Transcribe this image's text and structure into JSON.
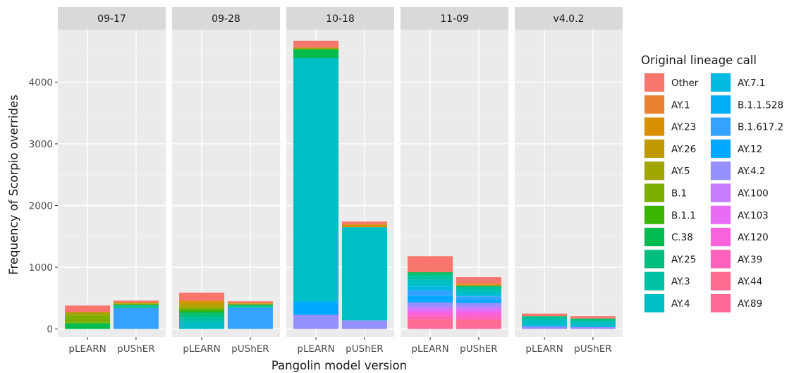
{
  "chart_data": {
    "type": "bar",
    "stacked": true,
    "faceted": true,
    "xlabel": "Pangolin model version",
    "ylabel": "Frequency of Scorpio overrides",
    "ylim": [
      -130,
      4850
    ],
    "yticks": [
      0,
      1000,
      2000,
      3000,
      4000
    ],
    "grid": true,
    "legend_position": "right",
    "legend_title": "Original lineage call",
    "categories": [
      "pLEARN",
      "pUShER"
    ],
    "lineages": [
      {
        "name": "Other",
        "color": "#F8766D"
      },
      {
        "name": "AY.1",
        "color": "#EA8331"
      },
      {
        "name": "AY.23",
        "color": "#D89000"
      },
      {
        "name": "AY.26",
        "color": "#C09B00"
      },
      {
        "name": "AY.5",
        "color": "#A3A500"
      },
      {
        "name": "B.1",
        "color": "#7CAE00"
      },
      {
        "name": "B.1.1",
        "color": "#39B600"
      },
      {
        "name": "C.38",
        "color": "#00BB4E"
      },
      {
        "name": "AY.25",
        "color": "#00BF7D"
      },
      {
        "name": "AY.3",
        "color": "#00C1A3"
      },
      {
        "name": "AY.4",
        "color": "#00BFC4"
      },
      {
        "name": "AY.7.1",
        "color": "#00BAE0"
      },
      {
        "name": "B.1.1.528",
        "color": "#00B0F6"
      },
      {
        "name": "B.1.617.2",
        "color": "#35A2FF"
      },
      {
        "name": "AY.12",
        "color": "#00A9FF"
      },
      {
        "name": "AY.4.2",
        "color": "#9590FF"
      },
      {
        "name": "AY.100",
        "color": "#C77CFF"
      },
      {
        "name": "AY.103",
        "color": "#E76BF3"
      },
      {
        "name": "AY.120",
        "color": "#FA62DB"
      },
      {
        "name": "AY.39",
        "color": "#FF62BC"
      },
      {
        "name": "AY.44",
        "color": "#FF6C91"
      },
      {
        "name": "AY.89",
        "color": "#FF6A98"
      }
    ],
    "panels": [
      {
        "label": "09-17",
        "bars": [
          {
            "category": "pLEARN",
            "segments": [
              {
                "lineage": "C.38",
                "value": 90
              },
              {
                "lineage": "B.1.1",
                "value": 10
              },
              {
                "lineage": "B.1",
                "value": 120
              },
              {
                "lineage": "AY.5",
                "value": 50
              },
              {
                "lineage": "Other",
                "value": 110
              }
            ]
          },
          {
            "category": "pUShER",
            "segments": [
              {
                "lineage": "B.1.617.2",
                "value": 340
              },
              {
                "lineage": "AY.25",
                "value": 25
              },
              {
                "lineage": "AY.3",
                "value": 25
              },
              {
                "lineage": "B.1",
                "value": 20
              },
              {
                "lineage": "AY.26",
                "value": 20
              },
              {
                "lineage": "Other",
                "value": 30
              }
            ]
          }
        ]
      },
      {
        "label": "09-28",
        "bars": [
          {
            "category": "pLEARN",
            "segments": [
              {
                "lineage": "AY.4",
                "value": 120
              },
              {
                "lineage": "AY.3",
                "value": 70
              },
              {
                "lineage": "AY.25",
                "value": 60
              },
              {
                "lineage": "C.38",
                "value": 30
              },
              {
                "lineage": "B.1.1",
                "value": 30
              },
              {
                "lineage": "B.1",
                "value": 30
              },
              {
                "lineage": "AY.5",
                "value": 40
              },
              {
                "lineage": "AY.26",
                "value": 40
              },
              {
                "lineage": "AY.23",
                "value": 40
              },
              {
                "lineage": "Other",
                "value": 130
              }
            ]
          },
          {
            "category": "pUShER",
            "segments": [
              {
                "lineage": "B.1.617.2",
                "value": 340
              },
              {
                "lineage": "AY.3",
                "value": 30
              },
              {
                "lineage": "AY.25",
                "value": 25
              },
              {
                "lineage": "AY.26",
                "value": 20
              },
              {
                "lineage": "AY.1",
                "value": 15
              },
              {
                "lineage": "Other",
                "value": 20
              }
            ]
          }
        ]
      },
      {
        "label": "10-18",
        "bars": [
          {
            "category": "pLEARN",
            "segments": [
              {
                "lineage": "AY.4.2",
                "value": 230
              },
              {
                "lineage": "AY.12",
                "value": 200
              },
              {
                "lineage": "AY.7.1",
                "value": 40
              },
              {
                "lineage": "AY.4",
                "value": 3920
              },
              {
                "lineage": "C.38",
                "value": 140
              },
              {
                "lineage": "AY.5",
                "value": 30
              },
              {
                "lineage": "Other",
                "value": 110
              }
            ]
          },
          {
            "category": "pUShER",
            "segments": [
              {
                "lineage": "AY.4.2",
                "value": 140
              },
              {
                "lineage": "AY.4",
                "value": 1510
              },
              {
                "lineage": "AY.23",
                "value": 40
              },
              {
                "lineage": "AY.1",
                "value": 20
              },
              {
                "lineage": "Other",
                "value": 30
              }
            ]
          }
        ]
      },
      {
        "label": "11-09",
        "bars": [
          {
            "category": "pLEARN",
            "segments": [
              {
                "lineage": "AY.89",
                "value": 80
              },
              {
                "lineage": "AY.44",
                "value": 80
              },
              {
                "lineage": "AY.39",
                "value": 60
              },
              {
                "lineage": "AY.120",
                "value": 50
              },
              {
                "lineage": "AY.103",
                "value": 50
              },
              {
                "lineage": "AY.100",
                "value": 40
              },
              {
                "lineage": "AY.4.2",
                "value": 70
              },
              {
                "lineage": "AY.12",
                "value": 110
              },
              {
                "lineage": "B.1.617.2",
                "value": 90
              },
              {
                "lineage": "AY.7.1",
                "value": 60
              },
              {
                "lineage": "AY.4",
                "value": 110
              },
              {
                "lineage": "AY.3",
                "value": 60
              },
              {
                "lineage": "AY.25",
                "value": 40
              },
              {
                "lineage": "C.38",
                "value": 20
              },
              {
                "lineage": "Other",
                "value": 260
              }
            ]
          },
          {
            "category": "pUShER",
            "segments": [
              {
                "lineage": "AY.89",
                "value": 80
              },
              {
                "lineage": "AY.44",
                "value": 70
              },
              {
                "lineage": "AY.39",
                "value": 60
              },
              {
                "lineage": "AY.120",
                "value": 60
              },
              {
                "lineage": "AY.103",
                "value": 50
              },
              {
                "lineage": "AY.100",
                "value": 40
              },
              {
                "lineage": "AY.4.2",
                "value": 60
              },
              {
                "lineage": "AY.12",
                "value": 60
              },
              {
                "lineage": "B.1.617.2",
                "value": 50
              },
              {
                "lineage": "AY.7.1",
                "value": 30
              },
              {
                "lineage": "AY.4",
                "value": 60
              },
              {
                "lineage": "AY.3",
                "value": 50
              },
              {
                "lineage": "AY.25",
                "value": 30
              },
              {
                "lineage": "AY.23",
                "value": 20
              },
              {
                "lineage": "AY.1",
                "value": 20
              },
              {
                "lineage": "Other",
                "value": 100
              }
            ]
          }
        ]
      },
      {
        "label": "v4.0.2",
        "bars": [
          {
            "category": "pLEARN",
            "segments": [
              {
                "lineage": "AY.4.2",
                "value": 40
              },
              {
                "lineage": "AY.12",
                "value": 20
              },
              {
                "lineage": "AY.4",
                "value": 90
              },
              {
                "lineage": "AY.3",
                "value": 40
              },
              {
                "lineage": "AY.25",
                "value": 20
              },
              {
                "lineage": "Other",
                "value": 40
              }
            ]
          },
          {
            "category": "pUShER",
            "segments": [
              {
                "lineage": "AY.4.2",
                "value": 30
              },
              {
                "lineage": "AY.12",
                "value": 20
              },
              {
                "lineage": "AY.4",
                "value": 60
              },
              {
                "lineage": "AY.3",
                "value": 40
              },
              {
                "lineage": "AY.25",
                "value": 20
              },
              {
                "lineage": "AY.1",
                "value": 10
              },
              {
                "lineage": "Other",
                "value": 30
              }
            ]
          }
        ]
      }
    ]
  }
}
